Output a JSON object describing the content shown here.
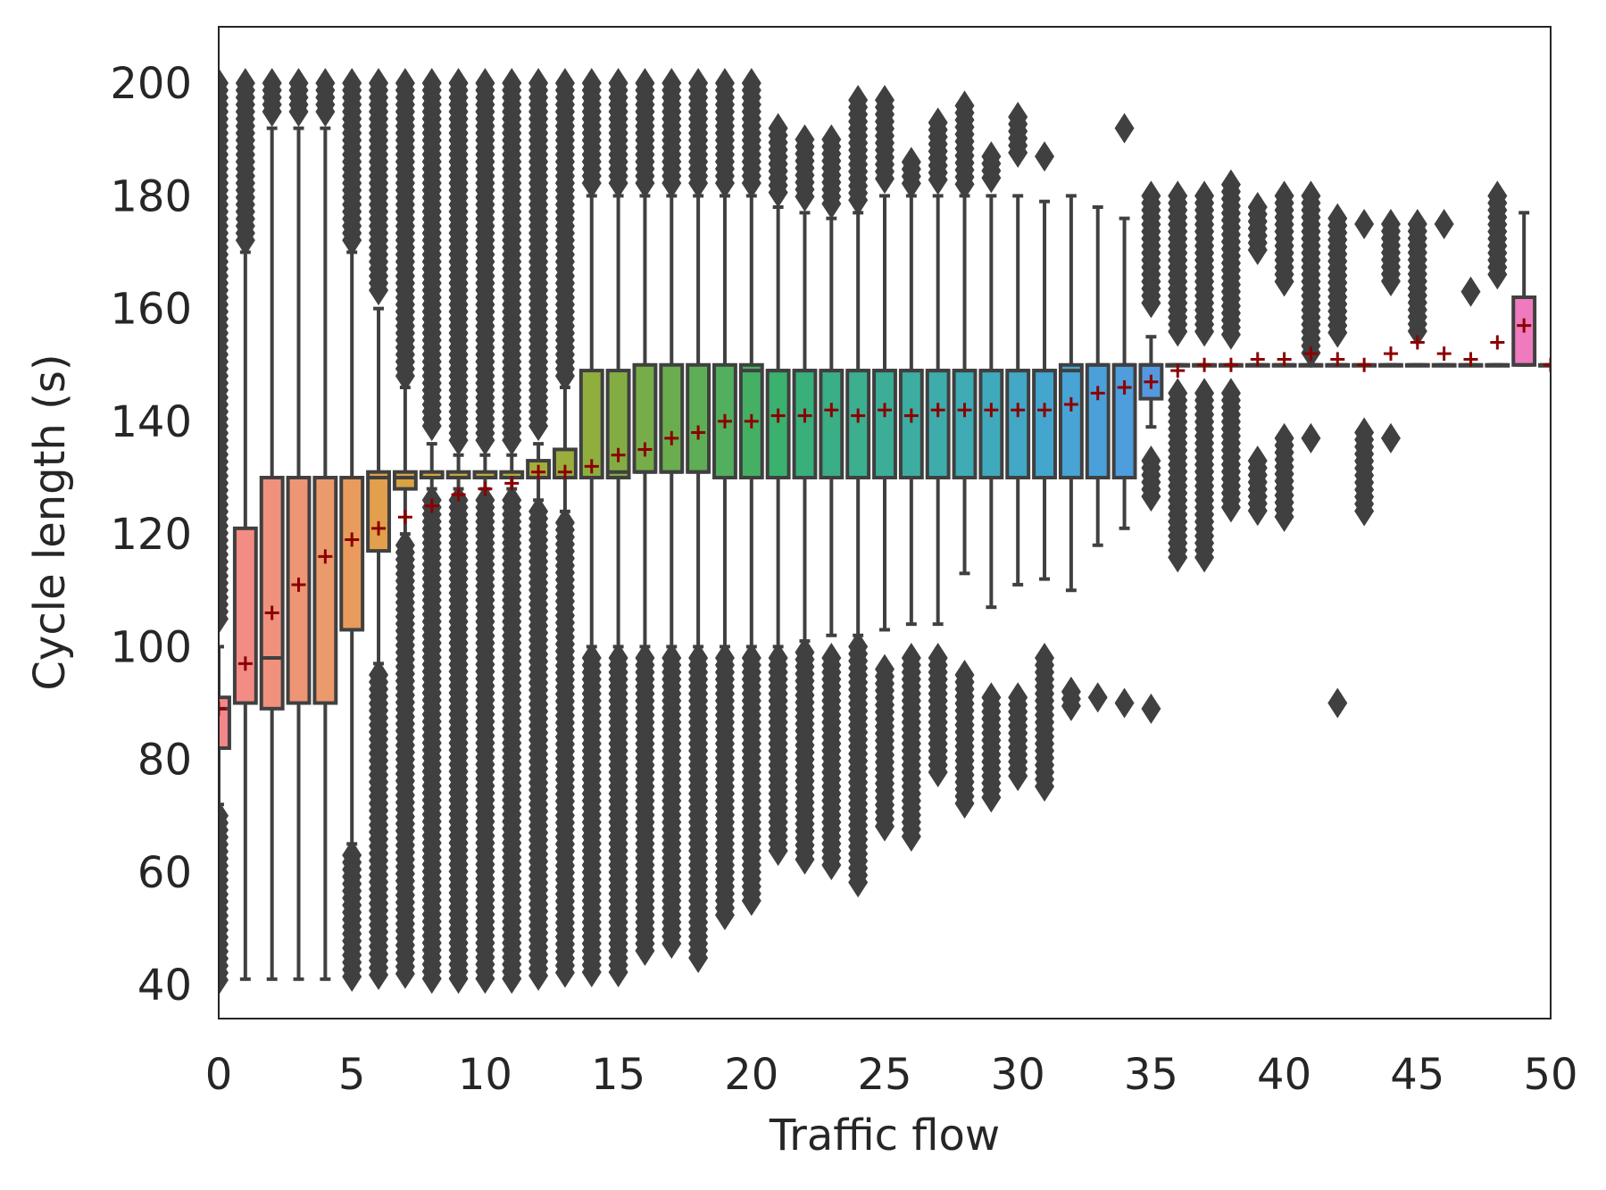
{
  "chart_data": {
    "type": "box",
    "xlabel": "Traffic flow",
    "ylabel": "Cycle length (s)",
    "xlim": [
      0,
      50
    ],
    "ylim": [
      34,
      210
    ],
    "xticks": [
      0,
      5,
      10,
      15,
      20,
      25,
      30,
      35,
      40,
      45,
      50
    ],
    "yticks": [
      40,
      60,
      80,
      100,
      120,
      140,
      160,
      180,
      200
    ],
    "grid": false,
    "legend": "none",
    "mean_marker": "+",
    "mean_color": "#8b0000",
    "outlier_color": "#404040",
    "box_edge_color": "#404040",
    "groups": [
      {
        "x": 0,
        "q1": 82,
        "median": 89,
        "q3": 91,
        "whislo": 72,
        "whishi": 100,
        "mean": 89,
        "color": "#f4878a",
        "outliers_low": [
          [
            40,
            70
          ]
        ],
        "outliers_high": [
          [
            104,
            200
          ]
        ]
      },
      {
        "x": 1,
        "q1": 90,
        "median": 90,
        "q3": 121,
        "whislo": 41,
        "whishi": 170,
        "mean": 97,
        "color": "#f28c84",
        "outliers_low": [],
        "outliers_high": [
          [
            172,
            200
          ]
        ]
      },
      {
        "x": 2,
        "q1": 89,
        "median": 98,
        "q3": 130,
        "whislo": 41,
        "whishi": 192,
        "mean": 106,
        "color": "#f0917e",
        "outliers_low": [],
        "outliers_high": [
          [
            194,
            200
          ]
        ]
      },
      {
        "x": 3,
        "q1": 90,
        "median": 90,
        "q3": 130,
        "whislo": 41,
        "whishi": 192,
        "mean": 111,
        "color": "#ee9576",
        "outliers_low": [],
        "outliers_high": [
          [
            194,
            200
          ]
        ]
      },
      {
        "x": 4,
        "q1": 90,
        "median": 90,
        "q3": 130,
        "whislo": 41,
        "whishi": 192,
        "mean": 116,
        "color": "#eb9a6c",
        "outliers_low": [],
        "outliers_high": [
          [
            194,
            200
          ]
        ]
      },
      {
        "x": 5,
        "q1": 103,
        "median": 130,
        "q3": 130,
        "whislo": 65,
        "whishi": 170,
        "mean": 119,
        "color": "#e89b5c",
        "outliers_low": [
          [
            41,
            63
          ]
        ],
        "outliers_high": [
          [
            172,
            200
          ]
        ]
      },
      {
        "x": 6,
        "q1": 117,
        "median": 130,
        "q3": 131,
        "whislo": 97,
        "whishi": 160,
        "mean": 121,
        "color": "#e29f4c",
        "outliers_low": [
          [
            41,
            95
          ]
        ],
        "outliers_high": [
          [
            162,
            200
          ]
        ]
      },
      {
        "x": 7,
        "q1": 128,
        "median": 130,
        "q3": 131,
        "whislo": 120,
        "whishi": 146,
        "mean": 123,
        "color": "#d9a344",
        "outliers_low": [
          [
            41,
            118
          ]
        ],
        "outliers_high": [
          [
            148,
            200
          ]
        ]
      },
      {
        "x": 8,
        "q1": 130,
        "median": 130,
        "q3": 131,
        "whislo": 128,
        "whishi": 136,
        "mean": 125,
        "color": "#cfa640",
        "outliers_low": [
          [
            41,
            126
          ]
        ],
        "outliers_high": [
          [
            138,
            200
          ]
        ]
      },
      {
        "x": 9,
        "q1": 130,
        "median": 130,
        "q3": 131,
        "whislo": 128,
        "whishi": 134,
        "mean": 127,
        "color": "#c5a83e",
        "outliers_low": [
          [
            41,
            126
          ]
        ],
        "outliers_high": [
          [
            136,
            200
          ]
        ]
      },
      {
        "x": 10,
        "q1": 130,
        "median": 130,
        "q3": 131,
        "whislo": 128,
        "whishi": 134,
        "mean": 128,
        "color": "#bbaa3c",
        "outliers_low": [
          [
            41,
            126
          ]
        ],
        "outliers_high": [
          [
            136,
            200
          ]
        ]
      },
      {
        "x": 11,
        "q1": 130,
        "median": 130,
        "q3": 131,
        "whislo": 128,
        "whishi": 134,
        "mean": 129,
        "color": "#b1ab3b",
        "outliers_low": [
          [
            41,
            126
          ]
        ],
        "outliers_high": [
          [
            136,
            200
          ]
        ]
      },
      {
        "x": 12,
        "q1": 130,
        "median": 130,
        "q3": 133,
        "whislo": 126,
        "whishi": 136,
        "mean": 131,
        "color": "#a6ac3b",
        "outliers_low": [
          [
            41,
            124
          ]
        ],
        "outliers_high": [
          [
            138,
            200
          ]
        ]
      },
      {
        "x": 13,
        "q1": 130,
        "median": 130,
        "q3": 135,
        "whislo": 124,
        "whishi": 146,
        "mean": 131,
        "color": "#9bad3c",
        "outliers_low": [
          [
            41,
            122
          ]
        ],
        "outliers_high": [
          [
            148,
            200
          ]
        ]
      },
      {
        "x": 14,
        "q1": 130,
        "median": 130,
        "q3": 149,
        "whislo": 100,
        "whishi": 180,
        "mean": 132,
        "color": "#8fae3e",
        "outliers_low": [
          [
            41,
            98
          ]
        ],
        "outliers_high": [
          [
            182,
            200
          ]
        ]
      },
      {
        "x": 15,
        "q1": 130,
        "median": 131,
        "q3": 149,
        "whislo": 100,
        "whishi": 180,
        "mean": 134,
        "color": "#83ad43",
        "outliers_low": [
          [
            41,
            98
          ]
        ],
        "outliers_high": [
          [
            182,
            200
          ]
        ]
      },
      {
        "x": 16,
        "q1": 131,
        "median": 131,
        "q3": 150,
        "whislo": 100,
        "whishi": 180,
        "mean": 135,
        "color": "#76ad49",
        "outliers_low": [
          [
            45,
            98
          ]
        ],
        "outliers_high": [
          [
            182,
            200
          ]
        ]
      },
      {
        "x": 17,
        "q1": 131,
        "median": 131,
        "q3": 150,
        "whislo": 100,
        "whishi": 180,
        "mean": 137,
        "color": "#6aad4f",
        "outliers_low": [
          [
            47,
            98
          ]
        ],
        "outliers_high": [
          [
            182,
            200
          ]
        ]
      },
      {
        "x": 18,
        "q1": 131,
        "median": 131,
        "q3": 150,
        "whislo": 100,
        "whishi": 180,
        "mean": 138,
        "color": "#5eae55",
        "outliers_low": [
          [
            44,
            98
          ]
        ],
        "outliers_high": [
          [
            182,
            200
          ]
        ]
      },
      {
        "x": 19,
        "q1": 130,
        "median": 130,
        "q3": 150,
        "whislo": 100,
        "whishi": 180,
        "mean": 140,
        "color": "#52af5d",
        "outliers_low": [
          [
            52,
            98
          ]
        ],
        "outliers_high": [
          [
            182,
            200
          ]
        ]
      },
      {
        "x": 20,
        "q1": 130,
        "median": 149,
        "q3": 150,
        "whislo": 100,
        "whishi": 180,
        "mean": 140,
        "color": "#45b064",
        "outliers_low": [
          [
            54,
            98
          ]
        ],
        "outliers_high": [
          [
            182,
            200
          ]
        ]
      },
      {
        "x": 21,
        "q1": 130,
        "median": 149,
        "q3": 149,
        "whislo": 100,
        "whishi": 178,
        "mean": 141,
        "color": "#3ab16f",
        "outliers_low": [
          [
            63,
            98
          ]
        ],
        "outliers_high": [
          [
            180,
            192
          ]
        ]
      },
      {
        "x": 22,
        "q1": 130,
        "median": 149,
        "q3": 149,
        "whislo": 101,
        "whishi": 177,
        "mean": 141,
        "color": "#39b07b",
        "outliers_low": [
          [
            62,
            99
          ]
        ],
        "outliers_high": [
          [
            179,
            190
          ]
        ]
      },
      {
        "x": 23,
        "q1": 130,
        "median": 149,
        "q3": 149,
        "whislo": 102,
        "whishi": 176,
        "mean": 142,
        "color": "#3aaf86",
        "outliers_low": [
          [
            61,
            98
          ]
        ],
        "outliers_high": [
          [
            178,
            190
          ]
        ]
      },
      {
        "x": 24,
        "q1": 130,
        "median": 149,
        "q3": 149,
        "whislo": 102,
        "whishi": 177,
        "mean": 141,
        "color": "#3baf8f",
        "outliers_low": [
          [
            58,
            100
          ]
        ],
        "outliers_high": [
          [
            179,
            197
          ]
        ]
      },
      {
        "x": 25,
        "q1": 130,
        "median": 149,
        "q3": 149,
        "whislo": 103,
        "whishi": 180,
        "mean": 142,
        "color": "#3cae98",
        "outliers_low": [
          [
            67,
            96
          ]
        ],
        "outliers_high": [
          [
            182,
            197
          ]
        ]
      },
      {
        "x": 26,
        "q1": 130,
        "median": 149,
        "q3": 149,
        "whislo": 104,
        "whishi": 180,
        "mean": 141,
        "color": "#3dada2",
        "outliers_low": [
          [
            66,
            98
          ]
        ],
        "outliers_high": [
          [
            182,
            186
          ]
        ]
      },
      {
        "x": 27,
        "q1": 130,
        "median": 149,
        "q3": 149,
        "whislo": 104,
        "whishi": 180,
        "mean": 142,
        "color": "#3eacab",
        "outliers_low": [
          [
            77,
            98
          ]
        ],
        "outliers_high": [
          [
            182,
            193
          ]
        ]
      },
      {
        "x": 28,
        "q1": 130,
        "median": 149,
        "q3": 149,
        "whislo": 113,
        "whishi": 180,
        "mean": 142,
        "color": "#3fabb4",
        "outliers_low": [
          [
            72,
            95
          ]
        ],
        "outliers_high": [
          [
            182,
            196
          ]
        ]
      },
      {
        "x": 29,
        "q1": 130,
        "median": 149,
        "q3": 149,
        "whislo": 107,
        "whishi": 180,
        "mean": 142,
        "color": "#40aabd",
        "outliers_low": [
          [
            73,
            91
          ]
        ],
        "outliers_high": [
          [
            182,
            187
          ]
        ]
      },
      {
        "x": 30,
        "q1": 130,
        "median": 149,
        "q3": 149,
        "whislo": 111,
        "whishi": 180,
        "mean": 142,
        "color": "#42a8c6",
        "outliers_low": [
          [
            76,
            91
          ]
        ],
        "outliers_high": [
          [
            187,
            194
          ]
        ]
      },
      {
        "x": 31,
        "q1": 130,
        "median": 149,
        "q3": 149,
        "whislo": 112,
        "whishi": 179,
        "mean": 142,
        "color": "#44a6cf",
        "outliers_low": [
          [
            75,
            98
          ]
        ],
        "outliers_high": [
          [
            186,
            187
          ]
        ]
      },
      {
        "x": 32,
        "q1": 130,
        "median": 149,
        "q3": 150,
        "whislo": 110,
        "whishi": 180,
        "mean": 143,
        "color": "#47a4d5",
        "outliers_low": [
          [
            89,
            92
          ]
        ],
        "outliers_high": []
      },
      {
        "x": 33,
        "q1": 130,
        "median": 150,
        "q3": 150,
        "whislo": 118,
        "whishi": 178,
        "mean": 145,
        "color": "#4aa1da",
        "outliers_low": [
          [
            91,
            91
          ]
        ],
        "outliers_high": []
      },
      {
        "x": 34,
        "q1": 130,
        "median": 150,
        "q3": 150,
        "whislo": 121,
        "whishi": 176,
        "mean": 146,
        "color": "#4e9ddd",
        "outliers_low": [
          [
            90,
            90
          ]
        ],
        "outliers_high": [
          [
            192,
            192
          ]
        ]
      },
      {
        "x": 35,
        "q1": 144,
        "median": 150,
        "q3": 150,
        "whislo": 139,
        "whishi": 155,
        "mean": 147,
        "color": "#5499df",
        "outliers_low": [
          [
            89,
            89
          ],
          [
            126,
            133
          ]
        ],
        "outliers_high": [
          [
            160,
            180
          ]
        ]
      },
      {
        "x": 36,
        "q1": 150,
        "median": 150,
        "q3": 150,
        "whislo": 150,
        "whishi": 150,
        "mean": 149,
        "color": "#6394e1",
        "outliers_low": [
          [
            115,
            145
          ]
        ],
        "outliers_high": [
          [
            155,
            180
          ]
        ]
      },
      {
        "x": 37,
        "q1": 150,
        "median": 150,
        "q3": 150,
        "whislo": 150,
        "whishi": 150,
        "mean": 150,
        "color": "#7190e2",
        "outliers_low": [
          [
            115,
            145
          ]
        ],
        "outliers_high": [
          [
            155,
            180
          ]
        ]
      },
      {
        "x": 38,
        "q1": 150,
        "median": 150,
        "q3": 150,
        "whislo": 150,
        "whishi": 150,
        "mean": 150,
        "color": "#7f8be2",
        "outliers_low": [
          [
            124,
            145
          ]
        ],
        "outliers_high": [
          [
            155,
            182
          ]
        ]
      },
      {
        "x": 39,
        "q1": 150,
        "median": 150,
        "q3": 150,
        "whislo": 150,
        "whishi": 150,
        "mean": 151,
        "color": "#8c87e1",
        "outliers_low": [
          [
            124,
            133
          ]
        ],
        "outliers_high": [
          [
            170,
            178
          ]
        ]
      },
      {
        "x": 40,
        "q1": 150,
        "median": 150,
        "q3": 150,
        "whislo": 150,
        "whishi": 150,
        "mean": 151,
        "color": "#9a83df",
        "outliers_low": [
          [
            123,
            137
          ]
        ],
        "outliers_high": [
          [
            164,
            180
          ]
        ]
      },
      {
        "x": 41,
        "q1": 150,
        "median": 150,
        "q3": 150,
        "whislo": 150,
        "whishi": 150,
        "mean": 152,
        "color": "#a67fdd",
        "outliers_low": [
          [
            137,
            137
          ]
        ],
        "outliers_high": [
          [
            152,
            180
          ]
        ]
      },
      {
        "x": 42,
        "q1": 150,
        "median": 150,
        "q3": 150,
        "whislo": 150,
        "whishi": 150,
        "mean": 151,
        "color": "#b37cdb",
        "outliers_low": [
          [
            90,
            90
          ]
        ],
        "outliers_high": [
          [
            155,
            176
          ]
        ]
      },
      {
        "x": 43,
        "q1": 150,
        "median": 150,
        "q3": 150,
        "whislo": 150,
        "whishi": 150,
        "mean": 150,
        "color": "#bf7ad8",
        "outliers_low": [
          [
            124,
            138
          ]
        ],
        "outliers_high": [
          [
            175,
            175
          ]
        ]
      },
      {
        "x": 44,
        "q1": 150,
        "median": 150,
        "q3": 150,
        "whislo": 150,
        "whishi": 150,
        "mean": 152,
        "color": "#ca78d4",
        "outliers_low": [
          [
            137,
            137
          ]
        ],
        "outliers_high": [
          [
            164,
            175
          ]
        ]
      },
      {
        "x": 45,
        "q1": 150,
        "median": 150,
        "q3": 150,
        "whislo": 150,
        "whishi": 150,
        "mean": 154,
        "color": "#d577d0",
        "outliers_low": [],
        "outliers_high": [
          [
            155,
            175
          ]
        ]
      },
      {
        "x": 46,
        "q1": 150,
        "median": 150,
        "q3": 150,
        "whislo": 150,
        "whishi": 150,
        "mean": 152,
        "color": "#df77cb",
        "outliers_low": [],
        "outliers_high": [
          [
            175,
            175
          ]
        ]
      },
      {
        "x": 47,
        "q1": 150,
        "median": 150,
        "q3": 150,
        "whislo": 150,
        "whishi": 150,
        "mean": 151,
        "color": "#e777c6",
        "outliers_low": [],
        "outliers_high": [
          [
            163,
            163
          ]
        ]
      },
      {
        "x": 48,
        "q1": 150,
        "median": 150,
        "q3": 150,
        "whislo": 150,
        "whishi": 150,
        "mean": 154,
        "color": "#ec78c2",
        "outliers_low": [],
        "outliers_high": [
          [
            165,
            180
          ]
        ]
      },
      {
        "x": 49,
        "q1": 150,
        "median": 150,
        "q3": 162,
        "whislo": 150,
        "whishi": 177,
        "mean": 157,
        "color": "#f07abe",
        "outliers_low": [],
        "outliers_high": []
      },
      {
        "x": 50,
        "q1": 150,
        "median": 150,
        "q3": 150,
        "whislo": 150,
        "whishi": 150,
        "mean": 150,
        "color": "#f37cba",
        "outliers_low": [],
        "outliers_high": []
      }
    ]
  }
}
